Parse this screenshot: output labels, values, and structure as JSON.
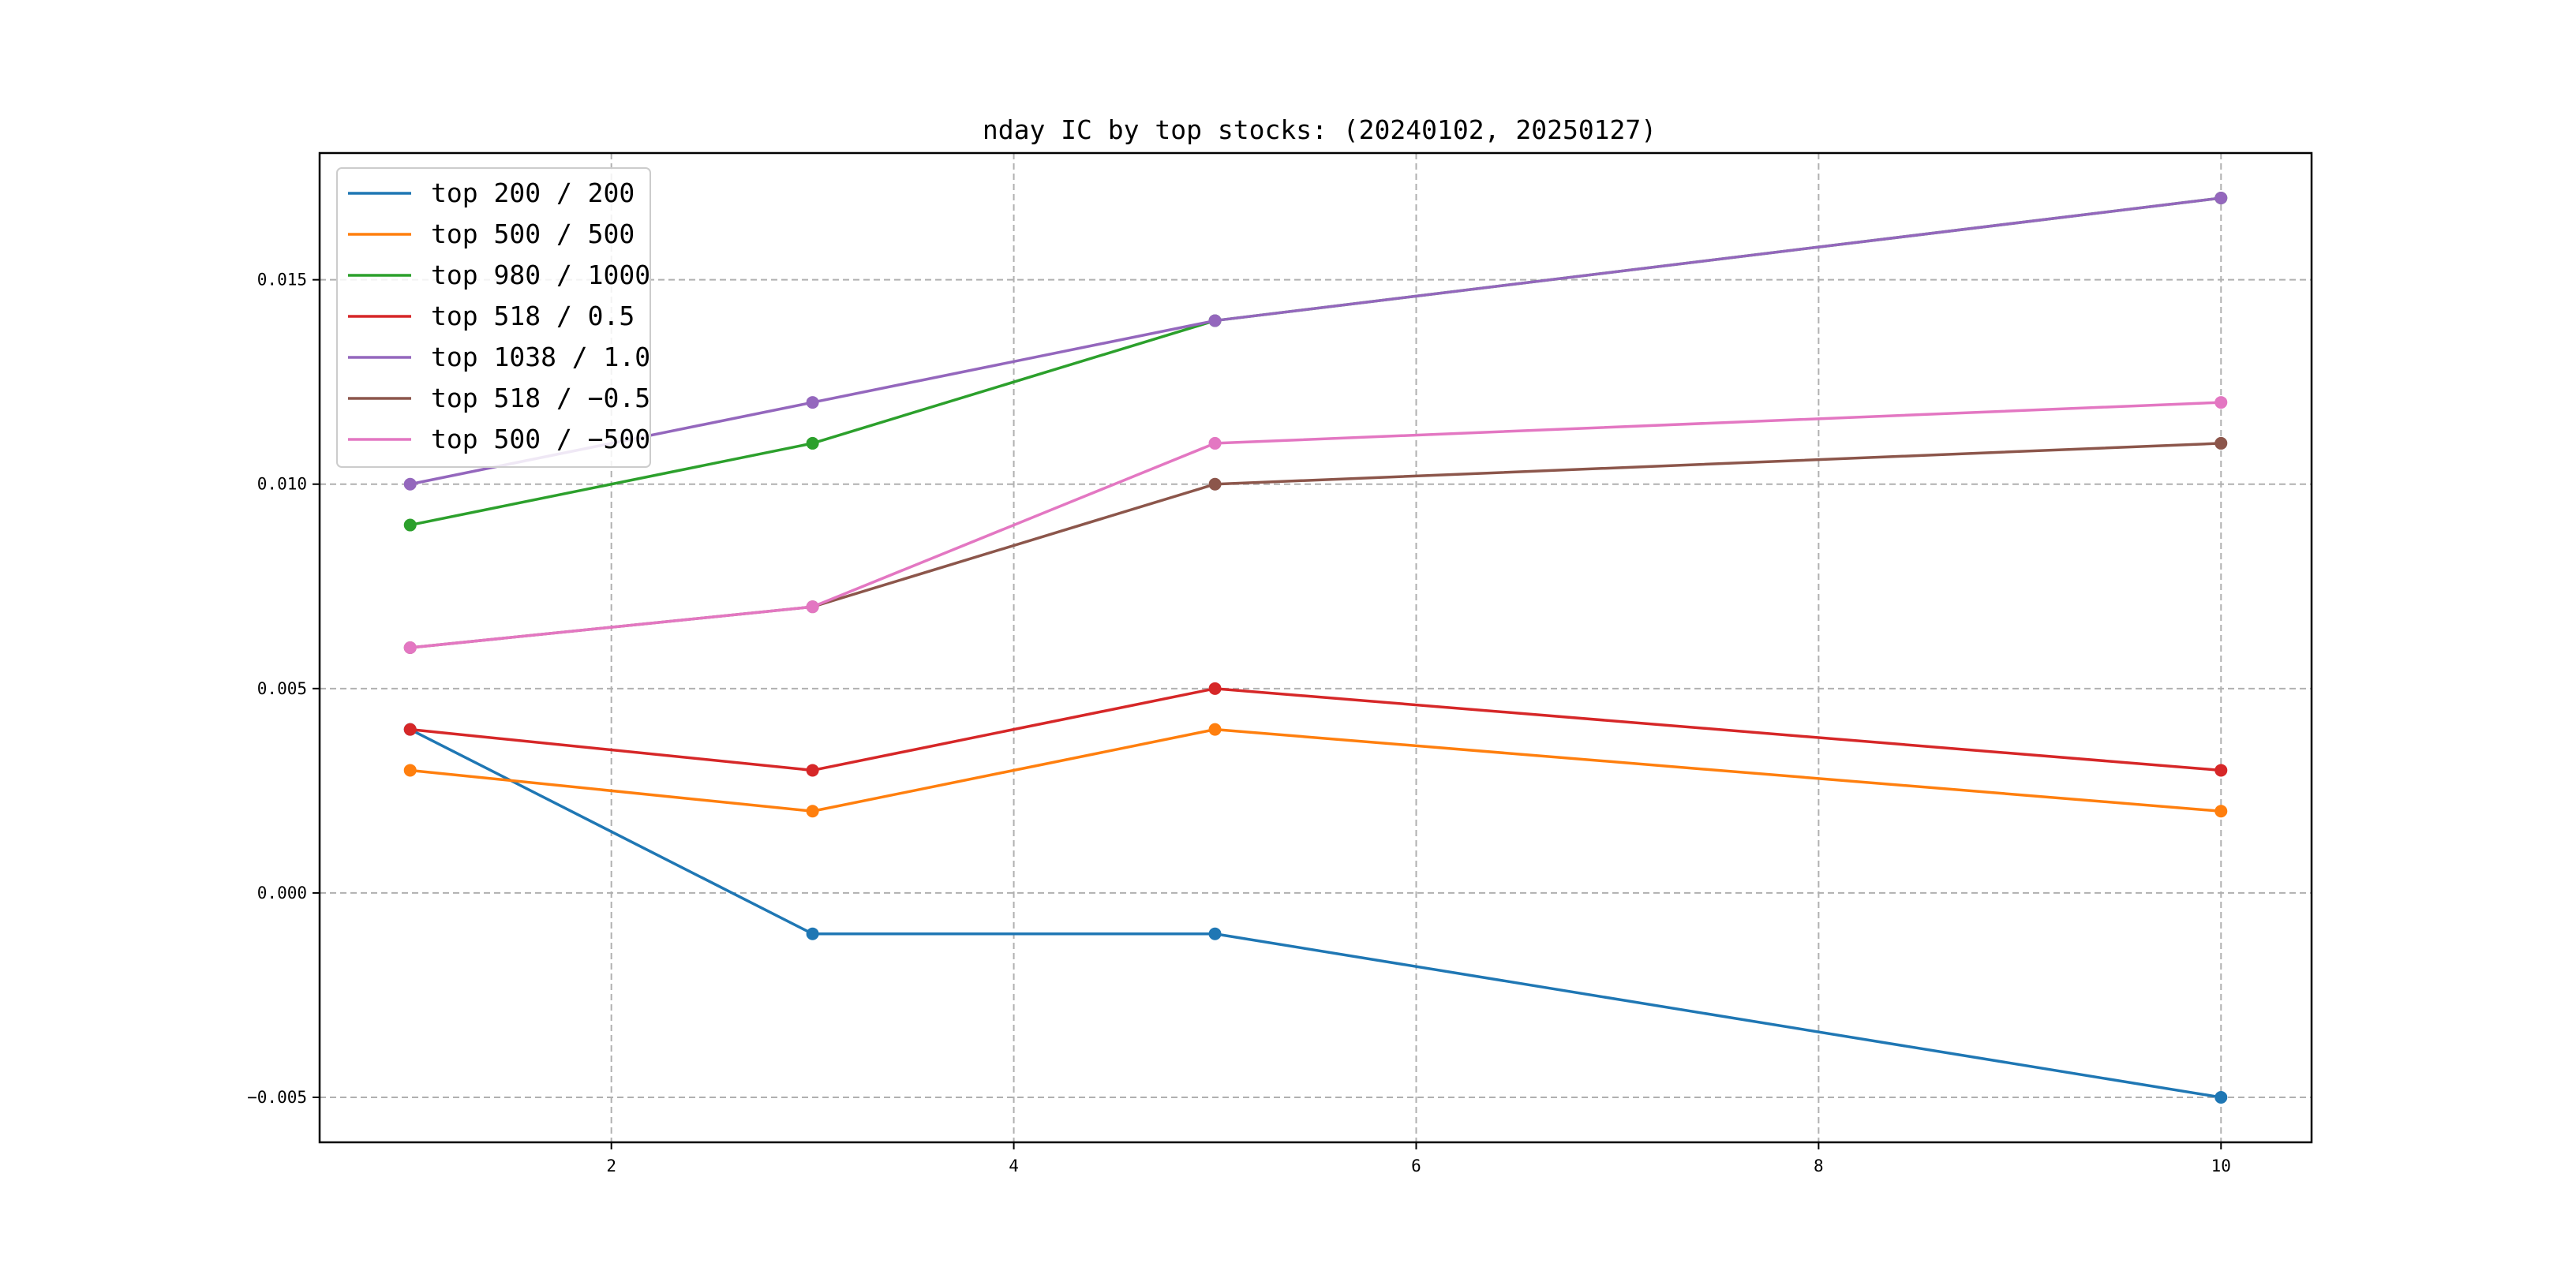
{
  "chart_data": {
    "type": "line",
    "title": "nday IC by top stocks: (20240102, 20250127)",
    "xlabel": "",
    "ylabel": "",
    "x": [
      1,
      3,
      5,
      10
    ],
    "xlim": [
      0.55,
      10.45
    ],
    "ylim": [
      -0.0061,
      0.0181
    ],
    "xticks": [
      2,
      4,
      6,
      8,
      10
    ],
    "xtick_labels": [
      "2",
      "4",
      "6",
      "8",
      "10"
    ],
    "yticks": [
      -0.005,
      0.0,
      0.005,
      0.01,
      0.015
    ],
    "ytick_labels": [
      "−0.005",
      "0.000",
      "0.005",
      "0.010",
      "0.015"
    ],
    "grid": true,
    "legend_position": "upper-left",
    "series": [
      {
        "name": "top 200 / 200",
        "color": "#1f77b4",
        "values": [
          0.004,
          -0.001,
          -0.001,
          -0.005
        ]
      },
      {
        "name": "top 500 / 500",
        "color": "#ff7f0e",
        "values": [
          0.003,
          0.002,
          0.004,
          0.002
        ]
      },
      {
        "name": "top 980 / 1000",
        "color": "#2ca02c",
        "values": [
          0.009,
          0.011,
          0.014,
          0.017
        ]
      },
      {
        "name": "top 518 / 0.5",
        "color": "#d62728",
        "values": [
          0.004,
          0.003,
          0.005,
          0.003
        ]
      },
      {
        "name": "top 1038 / 1.0",
        "color": "#9467bd",
        "values": [
          0.01,
          0.012,
          0.014,
          0.017
        ]
      },
      {
        "name": "top 518 / −0.5",
        "color": "#8c564b",
        "values": [
          0.006,
          0.007,
          0.01,
          0.011
        ]
      },
      {
        "name": "top 500 / −500",
        "color": "#e377c2",
        "values": [
          0.006,
          0.007,
          0.011,
          0.012
        ]
      }
    ]
  }
}
